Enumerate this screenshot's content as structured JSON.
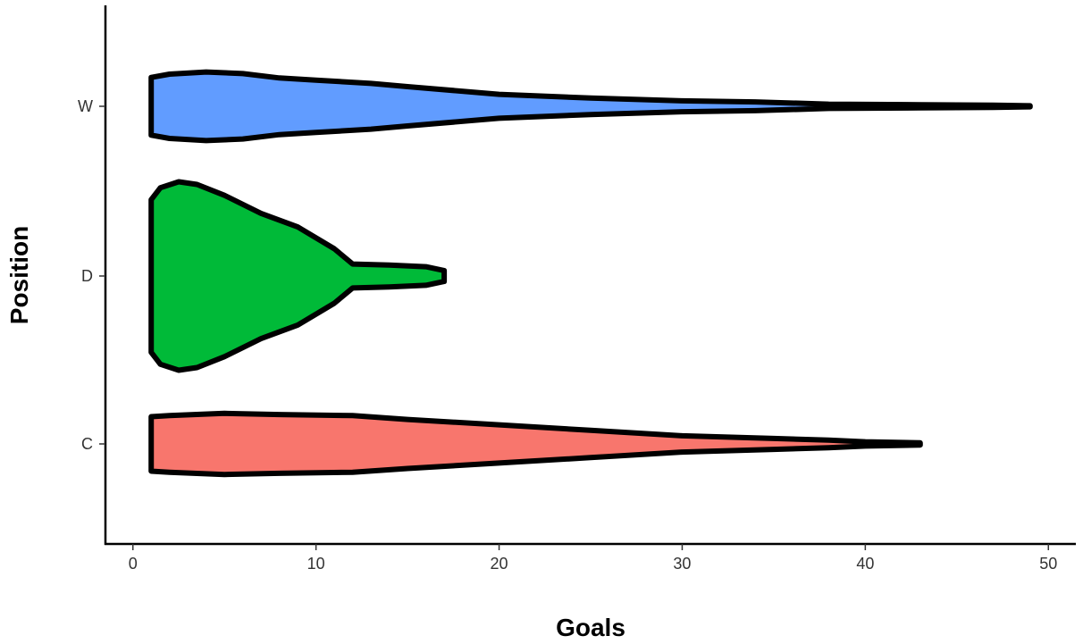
{
  "chart_data": {
    "type": "violin",
    "orientation": "horizontal",
    "title": "",
    "xlabel": "Goals",
    "ylabel": "Position",
    "xlim": [
      -1.5,
      51.5
    ],
    "x_ticks": [
      0,
      10,
      20,
      30,
      40,
      50
    ],
    "categories": [
      "C",
      "D",
      "W"
    ],
    "series": [
      {
        "category": "W",
        "color": "#619CFF",
        "min": 1,
        "max": 49,
        "density_profile": [
          [
            1,
            0.53
          ],
          [
            2,
            0.59
          ],
          [
            4,
            0.63
          ],
          [
            6,
            0.6
          ],
          [
            8,
            0.52
          ],
          [
            10,
            0.48
          ],
          [
            13,
            0.42
          ],
          [
            15,
            0.36
          ],
          [
            20,
            0.22
          ],
          [
            25,
            0.15
          ],
          [
            30,
            0.1
          ],
          [
            34,
            0.08
          ],
          [
            38,
            0.04
          ],
          [
            43,
            0.03
          ],
          [
            47,
            0.02
          ],
          [
            49,
            0.01
          ]
        ]
      },
      {
        "category": "D",
        "color": "#00BA38",
        "min": 1,
        "max": 17,
        "density_profile": [
          [
            1,
            1.4
          ],
          [
            1.5,
            1.62
          ],
          [
            2.5,
            1.73
          ],
          [
            3.5,
            1.68
          ],
          [
            5,
            1.48
          ],
          [
            7,
            1.15
          ],
          [
            9,
            0.9
          ],
          [
            11,
            0.5
          ],
          [
            12,
            0.22
          ],
          [
            14,
            0.2
          ],
          [
            16,
            0.17
          ],
          [
            17,
            0.1
          ]
        ]
      },
      {
        "category": "C",
        "color": "#F8766D",
        "min": 1,
        "max": 43,
        "density_profile": [
          [
            1,
            0.5
          ],
          [
            2,
            0.52
          ],
          [
            5,
            0.56
          ],
          [
            8,
            0.54
          ],
          [
            12,
            0.52
          ],
          [
            15,
            0.45
          ],
          [
            20,
            0.35
          ],
          [
            25,
            0.25
          ],
          [
            30,
            0.15
          ],
          [
            35,
            0.1
          ],
          [
            38,
            0.07
          ],
          [
            40,
            0.04
          ],
          [
            43,
            0.02
          ]
        ]
      }
    ]
  }
}
